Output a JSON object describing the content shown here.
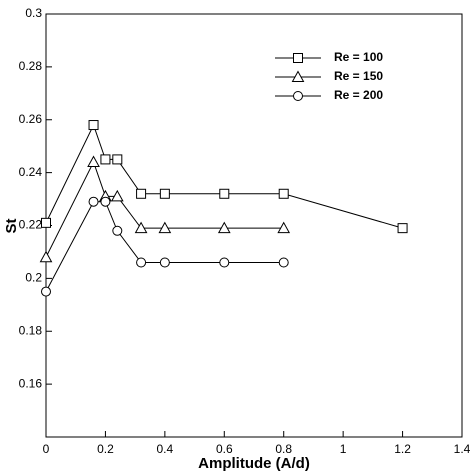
{
  "chart_data": {
    "type": "line",
    "x_label": "Amplitude (A/d)",
    "y_label": "St",
    "xlim": [
      0,
      1.4
    ],
    "xticks": [
      0,
      0.2,
      0.4,
      0.6,
      0.8,
      1,
      1.2,
      1.4
    ],
    "ylim": [
      0.14,
      0.3
    ],
    "yticks": [
      0.16,
      0.18,
      0.2,
      0.22,
      0.24,
      0.26,
      0.28,
      0.3
    ],
    "legend": "upper right",
    "series": [
      {
        "name": "Re = 100",
        "color": "#000000",
        "marker": "square",
        "x": [
          0,
          0.16,
          0.2,
          0.24,
          0.32,
          0.4,
          0.6,
          0.8,
          1.2
        ],
        "values": [
          0.221,
          0.258,
          0.245,
          0.245,
          0.232,
          0.232,
          0.232,
          0.232,
          0.219
        ]
      },
      {
        "name": "Re = 150",
        "color": "#000000",
        "marker": "triangle",
        "x": [
          0,
          0.16,
          0.2,
          0.24,
          0.32,
          0.4,
          0.6,
          0.8
        ],
        "values": [
          0.208,
          0.244,
          0.231,
          0.231,
          0.219,
          0.219,
          0.219,
          0.219
        ]
      },
      {
        "name": "Re = 200",
        "color": "#000000",
        "marker": "circle",
        "x": [
          0,
          0.16,
          0.2,
          0.24,
          0.32,
          0.4,
          0.6,
          0.8
        ],
        "values": [
          0.195,
          0.229,
          0.229,
          0.218,
          0.206,
          0.206,
          0.206,
          0.206
        ]
      }
    ]
  }
}
